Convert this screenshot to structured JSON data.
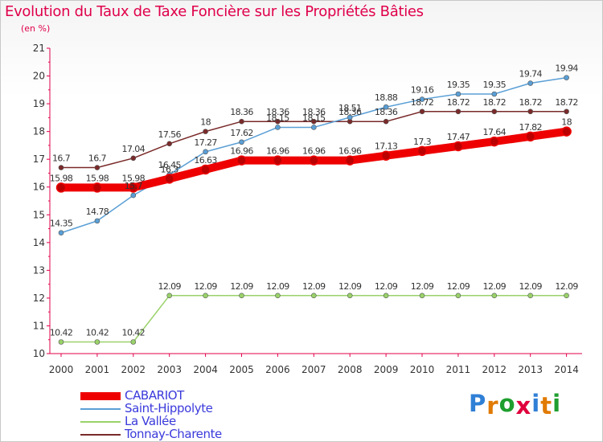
{
  "title": "Evolution du Taux de Taxe Foncière sur les Propriétés Bâties",
  "subtitle": "(en %)",
  "logo": {
    "letters": [
      "P",
      "r",
      "o",
      "x",
      "i",
      "t",
      "i"
    ],
    "colors": [
      "#2f7fd6",
      "#e07a00",
      "#1e9e2e",
      "#e0003c",
      "#2f7fd6",
      "#e07a00",
      "#1e9e2e"
    ]
  },
  "chart_data": {
    "type": "line",
    "title": "Evolution du Taux de Taxe Foncière sur les Propriétés Bâties",
    "ylabel": "(en %)",
    "xlabel": "",
    "ylim": [
      10,
      21
    ],
    "yticks": [
      "10",
      "11",
      "12",
      "13",
      "14",
      "15",
      "16",
      "17",
      "18",
      "19",
      "20",
      "21"
    ],
    "x": [
      "2000",
      "2001",
      "2002",
      "2003",
      "2004",
      "2005",
      "2006",
      "2007",
      "2008",
      "2009",
      "2010",
      "2011",
      "2012",
      "2013",
      "2014"
    ],
    "grid": false,
    "legend": "bottom-left",
    "series": [
      {
        "name": "Tonnay-Charente",
        "color": "#7a2a2a",
        "values": [
          16.7,
          16.7,
          17.04,
          17.56,
          18,
          18.36,
          18.36,
          18.36,
          18.36,
          18.36,
          18.72,
          18.72,
          18.72,
          18.72,
          18.72
        ],
        "labels": [
          "16.7",
          "16.7",
          "17.04",
          "17.56",
          "18",
          "18.36",
          "18.36",
          "18.36",
          "18.36",
          "18.36",
          "18.72",
          "18.72",
          "18.72",
          "18.72",
          "18.72"
        ]
      },
      {
        "name": "Saint-Hippolyte",
        "color": "#5a9fd6",
        "values": [
          14.35,
          14.78,
          15.7,
          16.45,
          17.27,
          17.62,
          18.15,
          18.15,
          18.51,
          18.88,
          19.16,
          19.35,
          19.35,
          19.74,
          19.94
        ],
        "labels": [
          "14.35",
          "14.78",
          "15.7",
          "16.45",
          "17.27",
          "17.62",
          "18.15",
          "18.15",
          "18.51",
          "18.88",
          "19.16",
          "19.35",
          "19.35",
          "19.74",
          "19.94"
        ]
      },
      {
        "name": "La Vallée",
        "color": "#9ad26a",
        "values": [
          10.42,
          10.42,
          10.42,
          12.09,
          12.09,
          12.09,
          12.09,
          12.09,
          12.09,
          12.09,
          12.09,
          12.09,
          12.09,
          12.09,
          12.09
        ],
        "labels": [
          "10.42",
          "10.42",
          "10.42",
          "12.09",
          "12.09",
          "12.09",
          "12.09",
          "12.09",
          "12.09",
          "12.09",
          "12.09",
          "12.09",
          "12.09",
          "12.09",
          "12.09"
        ]
      },
      {
        "name": "CABARIOT",
        "color": "#ee0000",
        "values": [
          15.98,
          15.98,
          15.98,
          16.3,
          16.63,
          16.96,
          16.96,
          16.96,
          16.96,
          17.13,
          17.3,
          17.47,
          17.64,
          17.82,
          18
        ],
        "labels": [
          "15.98",
          "15.98",
          "15.98",
          "16.3",
          "16.63",
          "16.96",
          "16.96",
          "16.96",
          "16.96",
          "17.13",
          "17.3",
          "17.47",
          "17.64",
          "17.82",
          "18"
        ]
      }
    ],
    "legend_order": [
      "CABARIOT",
      "Saint-Hippolyte",
      "La Vallée",
      "Tonnay-Charente"
    ]
  }
}
